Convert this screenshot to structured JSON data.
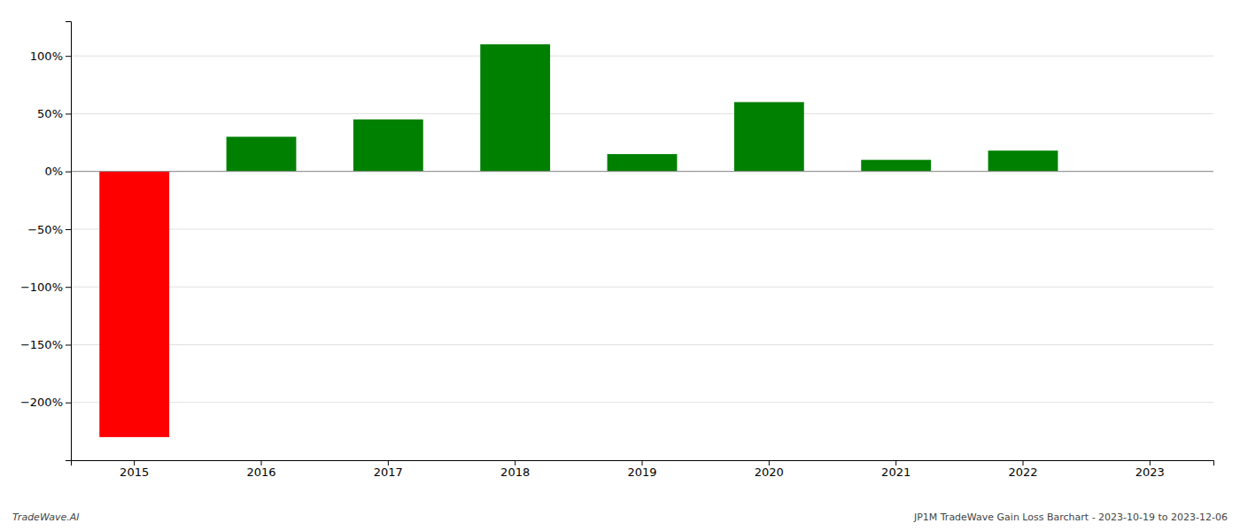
{
  "chart_data": {
    "type": "bar",
    "categories": [
      "2015",
      "2016",
      "2017",
      "2018",
      "2019",
      "2020",
      "2021",
      "2022",
      "2023"
    ],
    "values": [
      -230,
      30,
      45,
      110,
      15,
      60,
      10,
      18,
      0
    ],
    "colors": [
      "#ff0000",
      "#008000",
      "#008000",
      "#008000",
      "#008000",
      "#008000",
      "#008000",
      "#008000",
      "#008000"
    ],
    "ylim": [
      -250,
      130
    ],
    "yticks": [
      {
        "value": -200,
        "label": "−200%"
      },
      {
        "value": -150,
        "label": "−150%"
      },
      {
        "value": -100,
        "label": "−100%"
      },
      {
        "value": -50,
        "label": "−50%"
      },
      {
        "value": 0,
        "label": "0%"
      },
      {
        "value": 50,
        "label": "50%"
      },
      {
        "value": 100,
        "label": "100%"
      }
    ],
    "grid": true,
    "annotations": [
      "TradeWave.AI",
      "JP1M TradeWave Gain Loss Barchart - 2023-10-19 to 2023-12-06"
    ]
  }
}
